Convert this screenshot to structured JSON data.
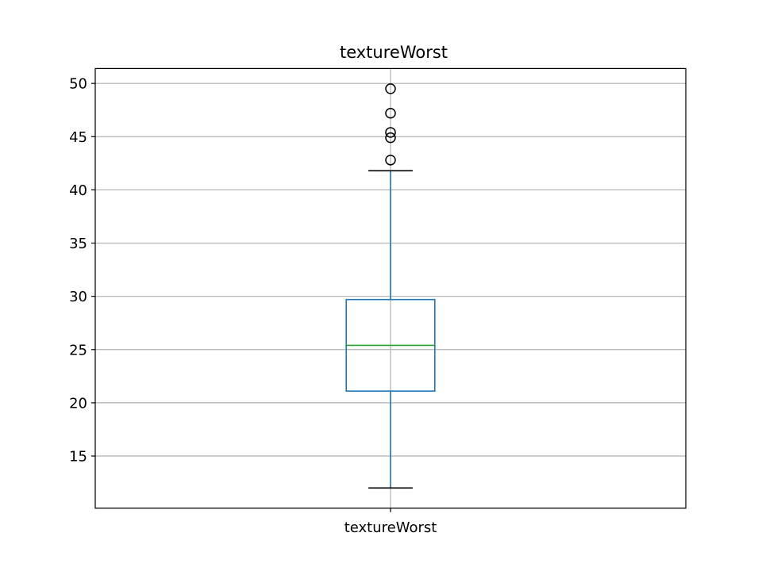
{
  "chart_data": {
    "type": "box",
    "title": "textureWorst",
    "xlabel": "",
    "ylabel": "",
    "categories": [
      "textureWorst"
    ],
    "ylim": [
      10.1,
      51.4
    ],
    "yticks": [
      15,
      20,
      25,
      30,
      35,
      40,
      45,
      50
    ],
    "grid": true,
    "boxes": [
      {
        "category": "textureWorst",
        "whisker_low": 12.0,
        "q1": 21.1,
        "median": 25.4,
        "q3": 29.7,
        "whisker_high": 41.8,
        "outliers": [
          42.8,
          44.9,
          45.4,
          47.2,
          49.5
        ]
      }
    ],
    "colors": {
      "box": "#1f77b4",
      "median": "#2ca02c",
      "whisker": "#1f77b4",
      "cap": "#000000",
      "grid": "#b0b0b0",
      "flier_edge": "#000000"
    }
  }
}
